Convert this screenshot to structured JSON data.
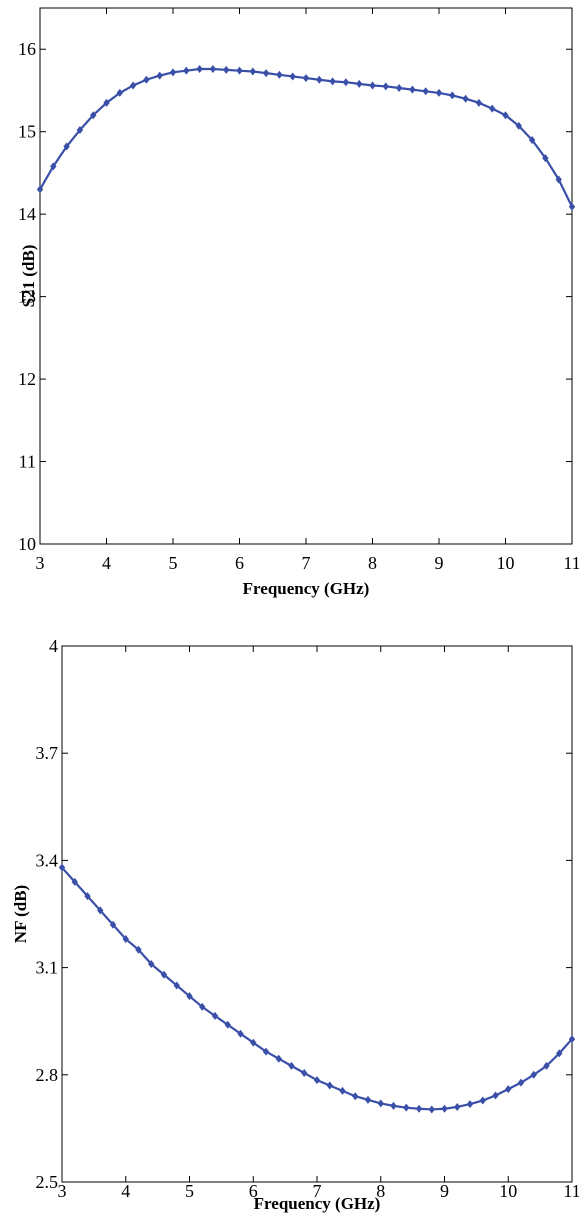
{
  "chart_data": [
    {
      "type": "line",
      "xlabel": "Frequency (GHz)",
      "ylabel": "S21 (dB)",
      "xlim": [
        3,
        11
      ],
      "ylim": [
        10,
        16.5
      ],
      "xticks": [
        3,
        4,
        5,
        6,
        7,
        8,
        9,
        10,
        11
      ],
      "yticks": [
        10,
        11,
        12,
        13,
        14,
        15,
        16
      ],
      "grid": false,
      "legend": "none",
      "series": [
        {
          "color": "#3a4fa8",
          "x": [
            3.0,
            3.2,
            3.4,
            3.6,
            3.8,
            4.0,
            4.2,
            4.4,
            4.6,
            4.8,
            5.0,
            5.2,
            5.4,
            5.6,
            5.8,
            6.0,
            6.2,
            6.4,
            6.6,
            6.8,
            7.0,
            7.2,
            7.4,
            7.6,
            7.8,
            8.0,
            8.2,
            8.4,
            8.6,
            8.8,
            9.0,
            9.2,
            9.4,
            9.6,
            9.8,
            10.0,
            10.2,
            10.4,
            10.6,
            10.8,
            11.0
          ],
          "y": [
            14.3,
            14.58,
            14.82,
            15.02,
            15.2,
            15.35,
            15.47,
            15.56,
            15.63,
            15.68,
            15.72,
            15.74,
            15.76,
            15.76,
            15.75,
            15.74,
            15.73,
            15.71,
            15.69,
            15.67,
            15.65,
            15.63,
            15.61,
            15.6,
            15.58,
            15.56,
            15.55,
            15.53,
            15.51,
            15.49,
            15.47,
            15.44,
            15.4,
            15.35,
            15.28,
            15.2,
            15.07,
            14.9,
            14.68,
            14.42,
            14.09
          ]
        }
      ]
    },
    {
      "type": "line",
      "xlabel": "Frequency (GHz)",
      "ylabel": "NF (dB)",
      "xlim": [
        3,
        11
      ],
      "ylim": [
        2.5,
        4
      ],
      "xticks": [
        3,
        4,
        5,
        6,
        7,
        8,
        9,
        10,
        11
      ],
      "yticks": [
        2.5,
        2.8,
        3.1,
        3.4,
        3.7,
        4
      ],
      "grid": false,
      "legend": "none",
      "series": [
        {
          "color": "#3a4fa8",
          "x": [
            3.0,
            3.2,
            3.4,
            3.6,
            3.8,
            4.0,
            4.2,
            4.4,
            4.6,
            4.8,
            5.0,
            5.2,
            5.4,
            5.6,
            5.8,
            6.0,
            6.2,
            6.4,
            6.6,
            6.8,
            7.0,
            7.2,
            7.4,
            7.6,
            7.8,
            8.0,
            8.2,
            8.4,
            8.6,
            8.8,
            9.0,
            9.2,
            9.4,
            9.6,
            9.8,
            10.0,
            10.2,
            10.4,
            10.6,
            10.8,
            11.0
          ],
          "y": [
            3.38,
            3.34,
            3.3,
            3.26,
            3.22,
            3.18,
            3.15,
            3.11,
            3.08,
            3.05,
            3.02,
            2.99,
            2.965,
            2.94,
            2.915,
            2.89,
            2.865,
            2.845,
            2.825,
            2.805,
            2.785,
            2.77,
            2.755,
            2.74,
            2.73,
            2.72,
            2.713,
            2.708,
            2.705,
            2.703,
            2.705,
            2.71,
            2.718,
            2.728,
            2.742,
            2.76,
            2.778,
            2.8,
            2.825,
            2.86,
            2.9
          ]
        }
      ]
    }
  ]
}
